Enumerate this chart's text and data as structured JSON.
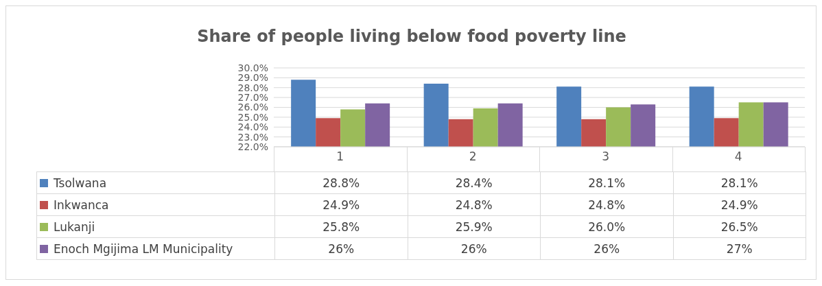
{
  "chart_data": {
    "type": "bar",
    "title": "Share of people living below food poverty line",
    "categories": [
      "1",
      "2",
      "3",
      "4"
    ],
    "series": [
      {
        "name": "Tsolwana",
        "color": "#4f81bd",
        "values": [
          28.8,
          28.4,
          28.1,
          28.1
        ],
        "value_labels": [
          "28.8%",
          "28.4%",
          "28.1%",
          "28.1%"
        ]
      },
      {
        "name": "Inkwanca",
        "color": "#c0504d",
        "values": [
          24.9,
          24.8,
          24.8,
          24.9
        ],
        "value_labels": [
          "24.9%",
          "24.8%",
          "24.8%",
          "24.9%"
        ]
      },
      {
        "name": "Lukanji",
        "color": "#9bbb59",
        "values": [
          25.8,
          25.9,
          26.0,
          26.5
        ],
        "value_labels": [
          "25.8%",
          "25.9%",
          "26.0%",
          "26.5%"
        ]
      },
      {
        "name": "Enoch Mgijima LM Municipality",
        "color": "#8064a2",
        "values": [
          26.4,
          26.4,
          26.3,
          26.5
        ],
        "value_labels": [
          "26%",
          "26%",
          "26%",
          "27%"
        ]
      }
    ],
    "ylim": [
      22,
      30
    ],
    "yticks": [
      {
        "value": 22,
        "label": "22.0%"
      },
      {
        "value": 23,
        "label": "23.0%"
      },
      {
        "value": 24,
        "label": "24.0%"
      },
      {
        "value": 25,
        "label": "25.0%"
      },
      {
        "value": 26,
        "label": "26.0%"
      },
      {
        "value": 27,
        "label": "27.0%"
      },
      {
        "value": 28,
        "label": "28.0%"
      },
      {
        "value": 29,
        "label": "29.0%"
      },
      {
        "value": 30,
        "label": "30.0%"
      }
    ],
    "grid": "y",
    "legend": "bottom"
  }
}
